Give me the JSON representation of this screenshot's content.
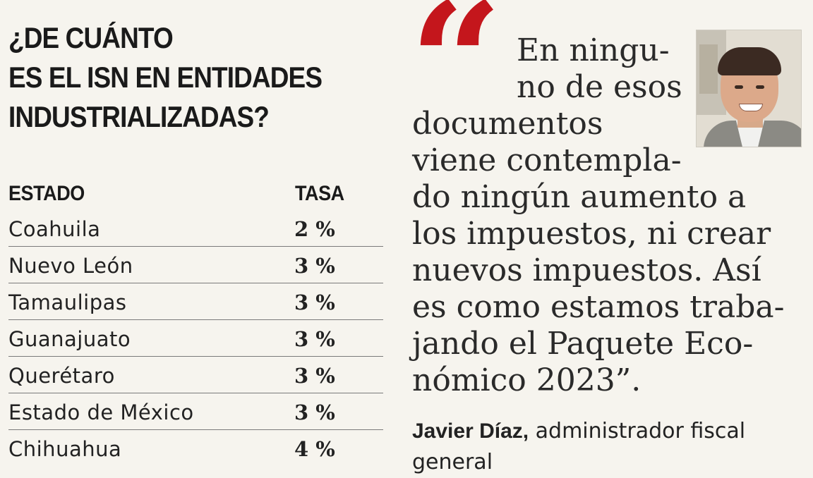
{
  "infographic": {
    "title_lines": [
      "¿DE CUÁNTO",
      "ES EL ISN EN ENTIDADES",
      "INDUSTRIALIZADAS?"
    ],
    "table": {
      "headers": {
        "state": "ESTADO",
        "rate": "TASA"
      },
      "rows": [
        {
          "state": "Coahuila",
          "rate": "2 %"
        },
        {
          "state": "Nuevo León",
          "rate": "3 %"
        },
        {
          "state": "Tamaulipas",
          "rate": "3 %"
        },
        {
          "state": "Guanajuato",
          "rate": "3 %"
        },
        {
          "state": "Querétaro",
          "rate": "3 %"
        },
        {
          "state": "Estado de México",
          "rate": "3 %"
        },
        {
          "state": "Chihuahua",
          "rate": "4 %"
        }
      ]
    }
  },
  "quote": {
    "mark": "“",
    "lines": [
      "En ningu-",
      "no de esos",
      "documentos",
      "viene contempla-",
      "do ningún aumento a",
      "los impuestos, ni crear",
      "nuevos impuestos. Así",
      "es como estamos traba-",
      "jando el Paquete Eco-",
      "nómico 2023”."
    ],
    "author_name": "Javier Díaz,",
    "author_role": " administrador fiscal",
    "author_role_2": "general"
  },
  "colors": {
    "accent": "#c4161c",
    "background": "#f6f4ee",
    "text": "#1f1f1f"
  }
}
